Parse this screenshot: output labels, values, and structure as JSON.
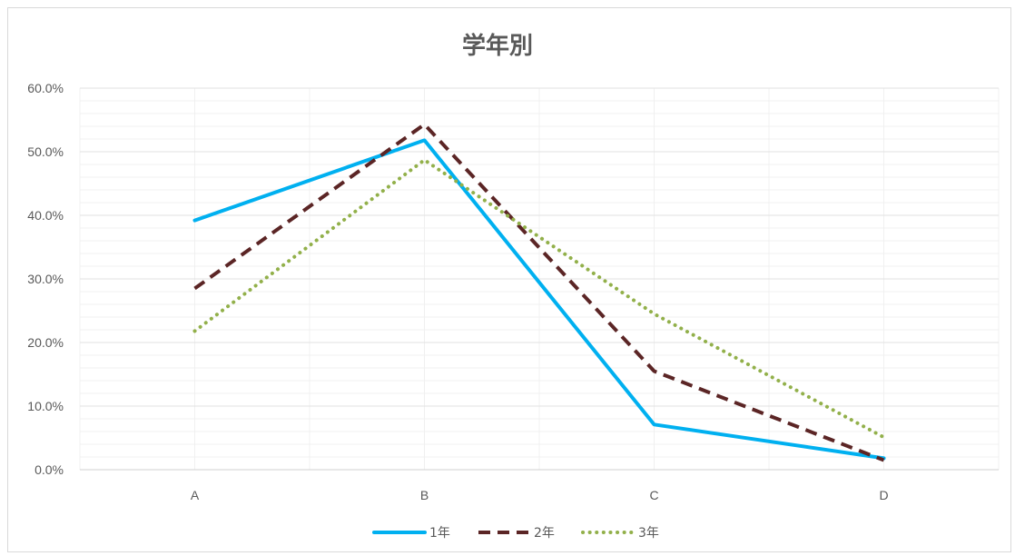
{
  "chart_data": {
    "type": "line",
    "title": "学年別",
    "categories": [
      "A",
      "B",
      "C",
      "D"
    ],
    "ylim": [
      0,
      0.6
    ],
    "ytick_step": 0.1,
    "ytick_labels": [
      "0.0%",
      "10.0%",
      "20.0%",
      "30.0%",
      "40.0%",
      "50.0%",
      "60.0%"
    ],
    "grid": true,
    "legend_position": "bottom",
    "series": [
      {
        "name": "1年",
        "values": [
          0.392,
          0.518,
          0.071,
          0.018
        ],
        "color": "#00b0f0",
        "style": "solid"
      },
      {
        "name": "2年",
        "values": [
          0.285,
          0.543,
          0.155,
          0.015
        ],
        "color": "#5b2525",
        "style": "dashed"
      },
      {
        "name": "3年",
        "values": [
          0.218,
          0.487,
          0.245,
          0.051
        ],
        "color": "#92b04a",
        "style": "dotted"
      }
    ]
  }
}
